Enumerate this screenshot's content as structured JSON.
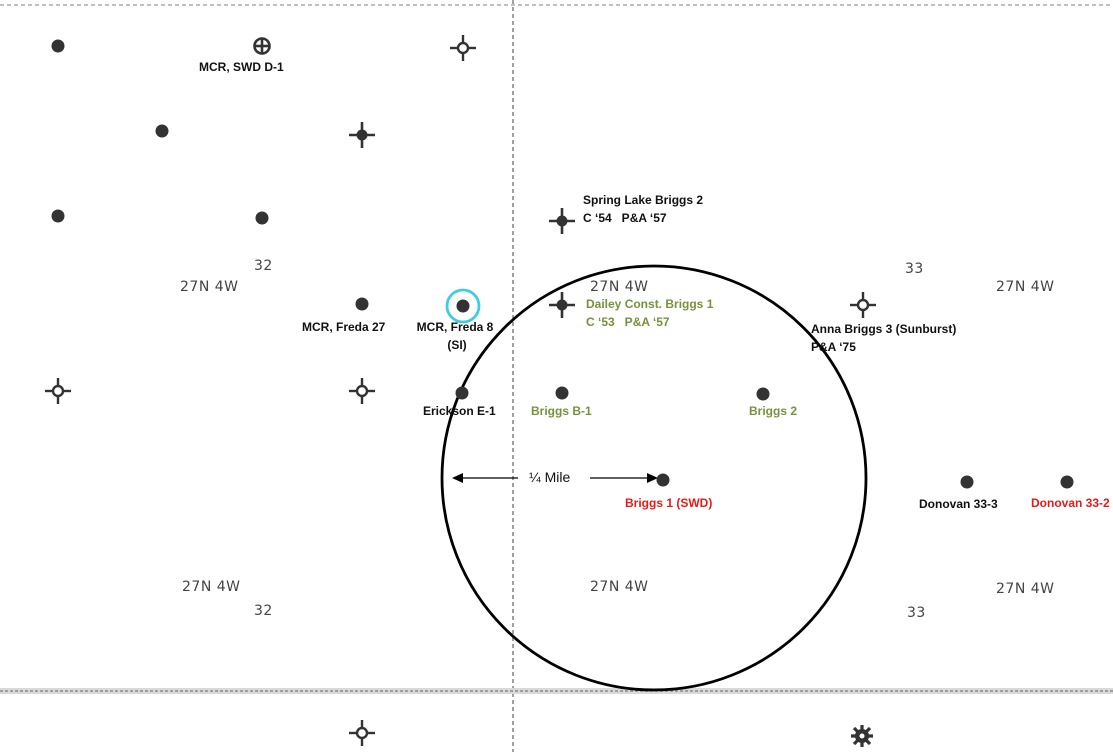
{
  "colors": {
    "label_default": "#111111",
    "label_green": "#76923c",
    "label_red": "#e41b17",
    "highlight_ring": "#3ecde0",
    "symbol": "#333333",
    "boundary": "#888888"
  },
  "sections": {
    "s32_top": "32",
    "s33_top": "33",
    "s32_bottom": "32",
    "s33_bottom": "33",
    "twp_tl": "27N 4W",
    "twp_tm": "27N 4W",
    "twp_tr": "27N 4W",
    "twp_bl": "27N 4W",
    "twp_bm": "27N 4W",
    "twp_br": "27N 4W"
  },
  "distance": {
    "label": "¼ Mile"
  },
  "wells": {
    "mcr_swd_d1": {
      "name": "MCR, SWD D-1",
      "symbol": "swd-icon"
    },
    "spring_lake_briggs2": {
      "name": "Spring Lake Briggs 2",
      "status": "C ‘54   P&A ‘57",
      "symbol": "dry-hole-icon"
    },
    "mcr_freda27": {
      "name": "MCR, Freda 27",
      "symbol": "oil-well-icon"
    },
    "mcr_freda8": {
      "name": "MCR, Freda 8",
      "status": "(SI)",
      "symbol": "oil-well-icon"
    },
    "dailey_briggs1": {
      "name": "Dailey Const. Briggs 1",
      "status": "C ‘53   P&A ‘57",
      "symbol": "dry-hole-icon"
    },
    "anna_briggs3": {
      "name": "Anna Briggs 3 (Sunburst)",
      "status": "P&A ‘75",
      "symbol": "gas-well-icon"
    },
    "erickson_e1": {
      "name": "Erickson E-1",
      "symbol": "oil-well-icon"
    },
    "briggs_b1": {
      "name": "Briggs B-1",
      "symbol": "oil-well-icon"
    },
    "briggs2": {
      "name": "Briggs 2",
      "symbol": "oil-well-icon"
    },
    "briggs1_swd": {
      "name": "Briggs 1 (SWD)",
      "symbol": "oil-well-icon"
    },
    "donovan33_3": {
      "name": "Donovan 33-3",
      "symbol": "oil-well-icon"
    },
    "donovan33_2": {
      "name": "Donovan 33-2",
      "symbol": "oil-well-icon"
    }
  }
}
